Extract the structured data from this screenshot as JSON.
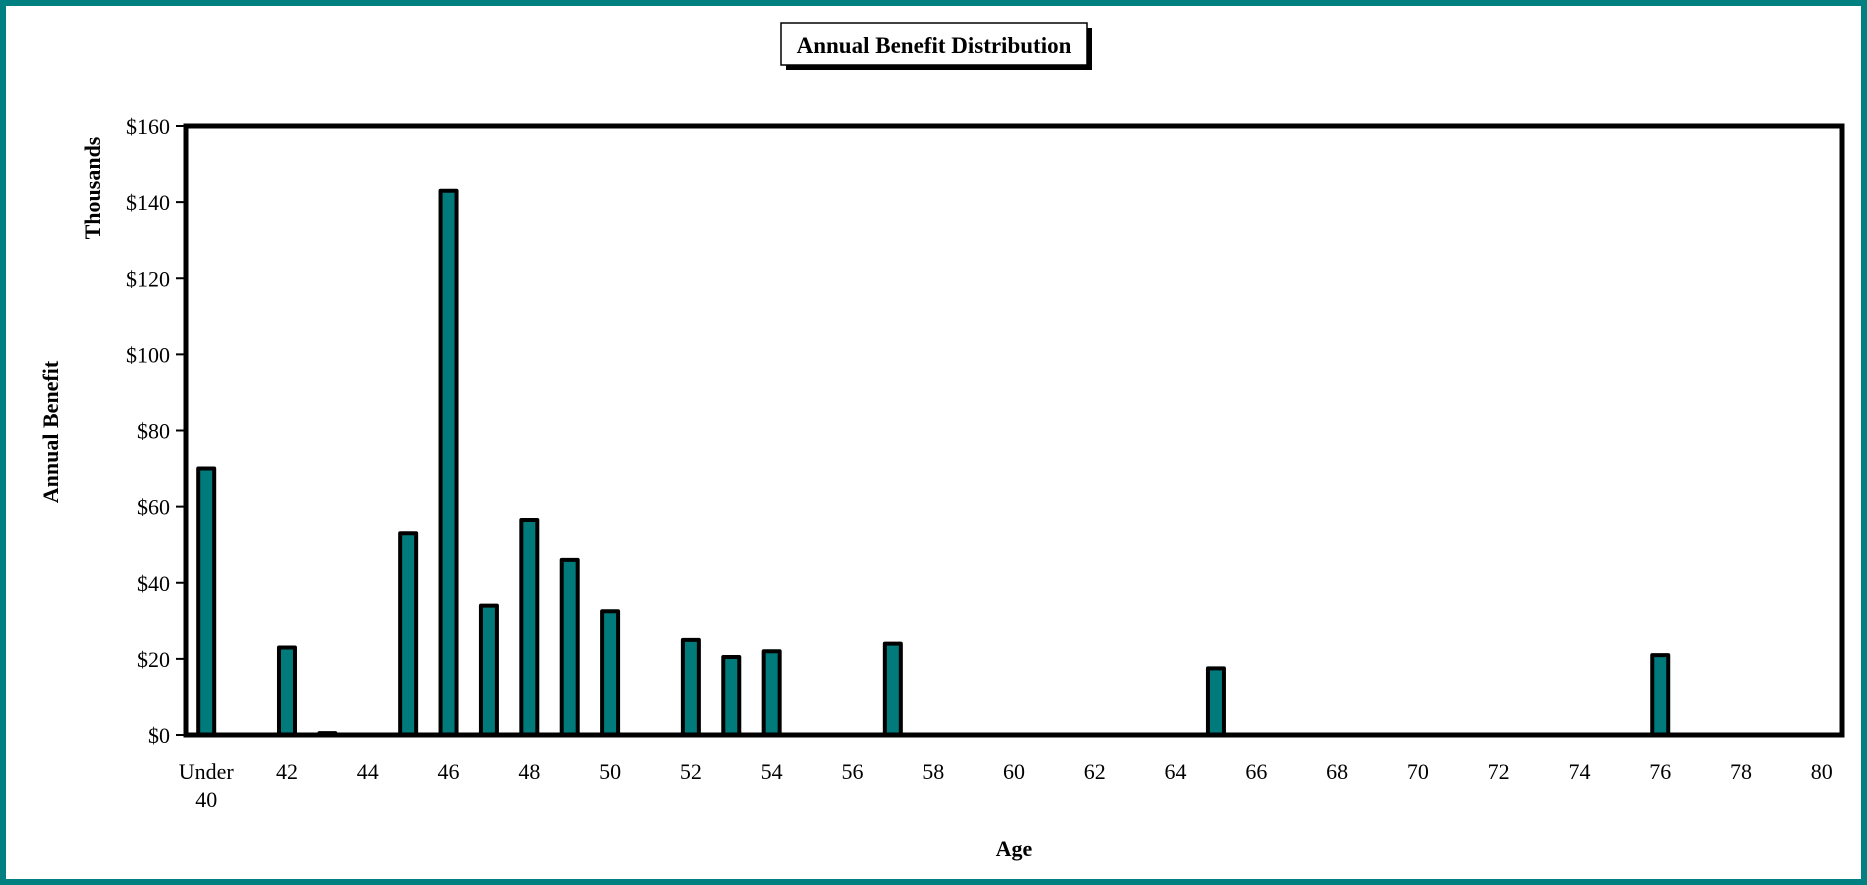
{
  "colors": {
    "frame": "#008080",
    "bar_fill": "#007a7a",
    "bar_stroke": "#000000",
    "axis": "#000000"
  },
  "chart_data": {
    "type": "bar",
    "title": "Annual Benefit Distribution",
    "xlabel": "Age",
    "ylabel": "Annual Benefit",
    "ylabel_units": "Thousands",
    "ylim": [
      0,
      160
    ],
    "y_ticks": [
      0,
      20,
      40,
      60,
      80,
      100,
      120,
      140,
      160
    ],
    "y_tick_labels": [
      "$0",
      "$20",
      "$40",
      "$60",
      "$80",
      "$100",
      "$120",
      "$140",
      "$160"
    ],
    "grid": false,
    "legend": "none",
    "categories": [
      "Under 40",
      "41",
      "42",
      "43",
      "44",
      "45",
      "46",
      "47",
      "48",
      "49",
      "50",
      "51",
      "52",
      "53",
      "54",
      "55",
      "56",
      "57",
      "58",
      "59",
      "60",
      "61",
      "62",
      "63",
      "64",
      "65",
      "66",
      "67",
      "68",
      "69",
      "70",
      "71",
      "72",
      "73",
      "74",
      "75",
      "76",
      "77",
      "78",
      "79",
      "80"
    ],
    "x_tick_labels": [
      "Under 40",
      "",
      "42",
      "",
      "44",
      "",
      "46",
      "",
      "48",
      "",
      "50",
      "",
      "52",
      "",
      "54",
      "",
      "56",
      "",
      "58",
      "",
      "60",
      "",
      "62",
      "",
      "64",
      "",
      "66",
      "",
      "68",
      "",
      "70",
      "",
      "72",
      "",
      "74",
      "",
      "76",
      "",
      "78",
      "",
      "80"
    ],
    "values": [
      70,
      0,
      23,
      0.5,
      0,
      53,
      143,
      34,
      56.5,
      46,
      32.5,
      0,
      25,
      20.5,
      22,
      0,
      0,
      24,
      0,
      0,
      0,
      0,
      0,
      0,
      0,
      17.5,
      0,
      0,
      0,
      0,
      0,
      0,
      0,
      0,
      0,
      0,
      21,
      0,
      0,
      0,
      0
    ]
  }
}
